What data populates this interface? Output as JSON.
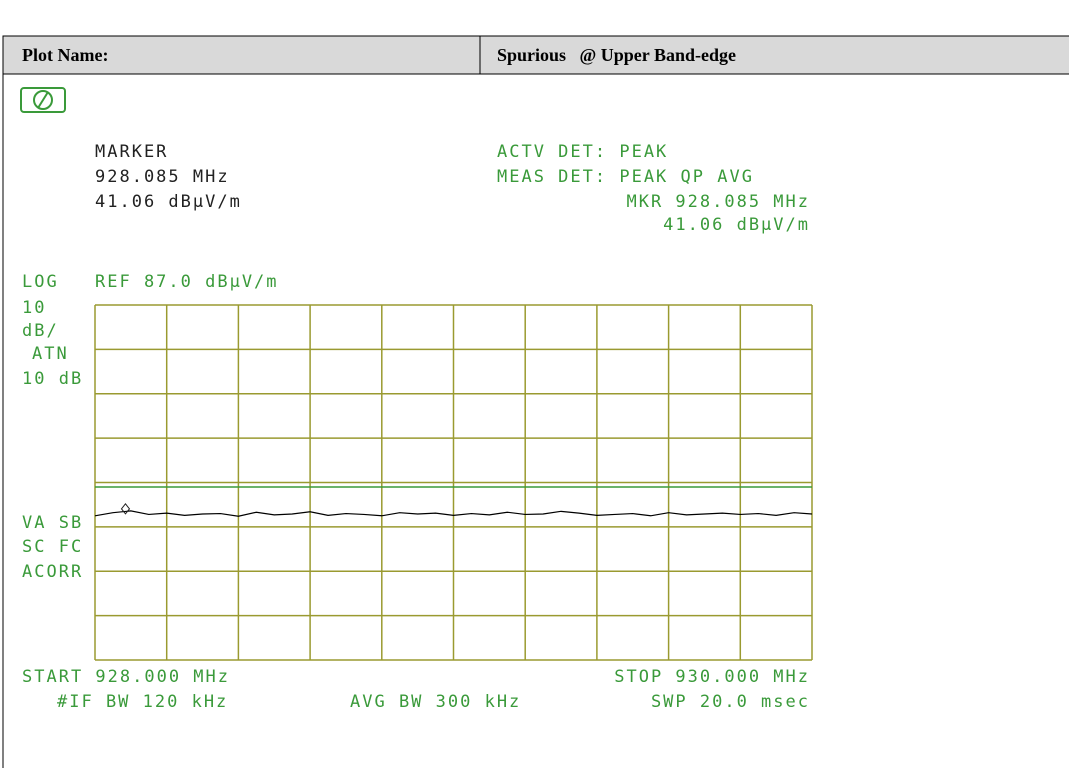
{
  "header": {
    "label": "Plot Name:",
    "value": "Spurious   @ Upper Band-edge"
  },
  "screen": {
    "marker_title": "MARKER",
    "marker_freq": "928.085 MHz",
    "marker_level": "41.06 dBµV/m",
    "actv_det": "ACTV DET: PEAK",
    "meas_det": "MEAS DET: PEAK QP AVG",
    "mkr_freq": "MKR 928.085 MHz",
    "mkr_level": "41.06 dBµV/m",
    "log": "LOG",
    "ref": "REF 87.0 dBµV/m",
    "scale_num": "10",
    "scale_unit": "dB/",
    "atn": "ATN",
    "atn_value": "10 dB",
    "va_sb": "VA SB",
    "sc_fc": "SC FC",
    "acorr": "ACORR",
    "start": "START 928.000 MHz",
    "stop": "STOP 930.000 MHz",
    "if_bw": "#IF BW 120 kHz",
    "avg_bw": "AVG BW 300 kHz",
    "swp": "SWP 20.0 msec"
  },
  "chart_data": {
    "type": "line",
    "x": [
      928.0,
      928.05,
      928.1,
      928.15,
      928.2,
      928.25,
      928.3,
      928.35,
      928.4,
      928.45,
      928.5,
      928.55,
      928.6,
      928.65,
      928.7,
      928.75,
      928.8,
      928.85,
      928.9,
      928.95,
      929.0,
      929.05,
      929.1,
      929.15,
      929.2,
      929.25,
      929.3,
      929.35,
      929.4,
      929.45,
      929.5,
      929.55,
      929.6,
      929.65,
      929.7,
      929.75,
      929.8,
      929.85,
      929.9,
      929.95,
      930.0
    ],
    "values": [
      39.5,
      40.2,
      40.6,
      39.8,
      40.1,
      39.6,
      39.9,
      40.0,
      39.4,
      40.3,
      39.7,
      39.9,
      40.4,
      39.6,
      40.0,
      39.8,
      39.5,
      40.2,
      39.9,
      40.1,
      39.6,
      40.0,
      39.7,
      40.3,
      39.8,
      39.9,
      40.5,
      40.1,
      39.6,
      39.8,
      40.0,
      39.5,
      40.2,
      39.7,
      39.9,
      40.1,
      39.8,
      40.0,
      39.6,
      40.2,
      39.9
    ],
    "color": "#000000",
    "marker_point": {
      "x": 928.085,
      "y": 41.06
    },
    "limit_line": 46,
    "xlim": [
      928,
      930
    ],
    "ylim": [
      7,
      87
    ],
    "xticks": [
      928,
      928.2,
      928.4,
      928.6,
      928.8,
      929,
      929.2,
      929.4,
      929.6,
      929.8,
      930
    ],
    "yticks": [
      7,
      17,
      27,
      37,
      47,
      57,
      67,
      77,
      87
    ]
  }
}
